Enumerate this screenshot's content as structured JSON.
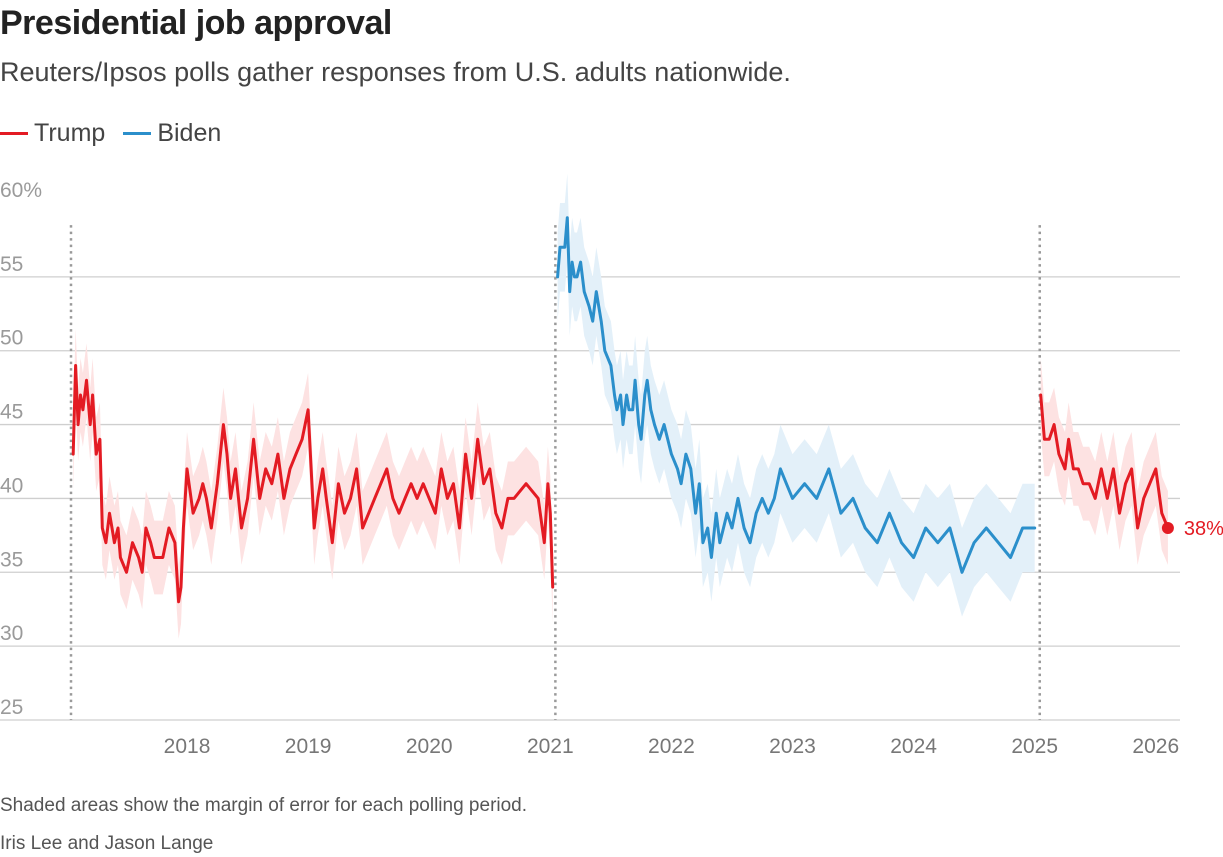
{
  "chart_data": {
    "type": "line",
    "title": "Presidential job approval",
    "subtitle": "Reuters/Ipsos polls gather responses from U.S. adults nationwide.",
    "note": "Shaded areas show the margin of error for each polling period.",
    "credit": "Iris Lee and Jason Lange",
    "ylim": [
      25,
      60
    ],
    "xlim": [
      2017.05,
      2026.2
    ],
    "y_ticks": [
      {
        "value": 60,
        "label": "60%"
      },
      {
        "value": 55,
        "label": "55"
      },
      {
        "value": 50,
        "label": "50"
      },
      {
        "value": 45,
        "label": "45"
      },
      {
        "value": 40,
        "label": "40"
      },
      {
        "value": 35,
        "label": "35"
      },
      {
        "value": 30,
        "label": "30"
      },
      {
        "value": 25,
        "label": "25"
      }
    ],
    "x_ticks": [
      {
        "value": 2018,
        "label": "2018"
      },
      {
        "value": 2019,
        "label": "2019"
      },
      {
        "value": 2020,
        "label": "2020"
      },
      {
        "value": 2021,
        "label": "2021"
      },
      {
        "value": 2022,
        "label": "2022"
      },
      {
        "value": 2023,
        "label": "2023"
      },
      {
        "value": 2024,
        "label": "2024"
      },
      {
        "value": 2025,
        "label": "2025"
      },
      {
        "value": 2026,
        "label": "2026"
      }
    ],
    "term_starts": [
      2017.05,
      2021.05,
      2025.05
    ],
    "end_label": "38%",
    "colors": {
      "trump": "#e31b23",
      "trump_band": "#fde2e2",
      "biden": "#2b8fcb",
      "biden_band": "#e3f0f9",
      "grid": "#cfcfcf",
      "axis_text": "#9a9a9a",
      "tick_text": "#777777"
    },
    "series": [
      {
        "name": "Trump",
        "term": "2017-2021",
        "x": [
          2017.06,
          2017.08,
          2017.1,
          2017.12,
          2017.14,
          2017.17,
          2017.2,
          2017.22,
          2017.25,
          2017.28,
          2017.3,
          2017.33,
          2017.36,
          2017.38,
          2017.4,
          2017.43,
          2017.45,
          2017.5,
          2017.55,
          2017.6,
          2017.63,
          2017.66,
          2017.7,
          2017.73,
          2017.76,
          2017.8,
          2017.85,
          2017.9,
          2017.93,
          2017.95,
          2017.97,
          2018.0,
          2018.05,
          2018.1,
          2018.13,
          2018.16,
          2018.2,
          2018.25,
          2018.3,
          2018.33,
          2018.36,
          2018.4,
          2018.45,
          2018.5,
          2018.55,
          2018.6,
          2018.65,
          2018.7,
          2018.75,
          2018.8,
          2018.85,
          2018.9,
          2018.95,
          2019.0,
          2019.05,
          2019.08,
          2019.12,
          2019.15,
          2019.2,
          2019.25,
          2019.3,
          2019.35,
          2019.4,
          2019.45,
          2019.5,
          2019.55,
          2019.6,
          2019.65,
          2019.7,
          2019.75,
          2019.8,
          2019.85,
          2019.9,
          2019.95,
          2020.0,
          2020.05,
          2020.1,
          2020.15,
          2020.2,
          2020.25,
          2020.3,
          2020.35,
          2020.4,
          2020.45,
          2020.5,
          2020.55,
          2020.6,
          2020.65,
          2020.7,
          2020.8,
          2020.9,
          2020.95,
          2020.98,
          2021.0,
          2021.02
        ],
        "values": [
          43,
          49,
          45,
          47,
          46,
          48,
          45,
          47,
          43,
          44,
          38,
          37,
          39,
          38,
          37,
          38,
          36,
          35,
          37,
          36,
          35,
          38,
          37,
          36,
          36,
          36,
          38,
          37,
          33,
          34,
          38,
          42,
          39,
          40,
          41,
          40,
          38,
          41,
          45,
          43,
          40,
          42,
          38,
          40,
          44,
          40,
          42,
          41,
          43,
          40,
          42,
          43,
          44,
          46,
          38,
          40,
          42,
          40,
          37,
          41,
          39,
          40,
          42,
          38,
          39,
          40,
          41,
          42,
          40,
          39,
          40,
          41,
          40,
          41,
          40,
          39,
          42,
          40,
          41,
          38,
          43,
          40,
          44,
          41,
          42,
          39,
          38,
          40,
          40,
          41,
          40,
          37,
          41,
          39,
          34
        ],
        "moe": 2.5
      },
      {
        "name": "Biden",
        "x": [
          2021.06,
          2021.08,
          2021.1,
          2021.12,
          2021.14,
          2021.16,
          2021.18,
          2021.2,
          2021.22,
          2021.25,
          2021.28,
          2021.32,
          2021.35,
          2021.38,
          2021.42,
          2021.45,
          2021.5,
          2021.53,
          2021.55,
          2021.58,
          2021.6,
          2021.63,
          2021.65,
          2021.68,
          2021.7,
          2021.73,
          2021.75,
          2021.78,
          2021.8,
          2021.83,
          2021.86,
          2021.9,
          2021.94,
          2022.0,
          2022.05,
          2022.08,
          2022.12,
          2022.16,
          2022.2,
          2022.23,
          2022.26,
          2022.3,
          2022.33,
          2022.37,
          2022.4,
          2022.43,
          2022.46,
          2022.5,
          2022.55,
          2022.6,
          2022.65,
          2022.7,
          2022.75,
          2022.8,
          2022.85,
          2022.9,
          2022.95,
          2023.0,
          2023.1,
          2023.2,
          2023.3,
          2023.4,
          2023.5,
          2023.6,
          2023.7,
          2023.8,
          2023.9,
          2024.0,
          2024.1,
          2024.2,
          2024.3,
          2024.4,
          2024.5,
          2024.6,
          2024.7,
          2024.8,
          2024.9,
          2025.0
        ],
        "values": [
          55,
          57,
          57,
          57,
          59,
          54,
          56,
          55,
          55,
          56,
          54,
          53,
          52,
          54,
          52,
          50,
          49,
          47,
          46,
          47,
          45,
          47,
          46,
          46,
          48,
          45,
          44,
          47,
          48,
          46,
          45,
          44,
          45,
          43,
          42,
          41,
          43,
          42,
          39,
          41,
          37,
          38,
          36,
          39,
          37,
          38,
          39,
          38,
          40,
          38,
          37,
          39,
          40,
          39,
          40,
          42,
          41,
          40,
          41,
          40,
          42,
          39,
          40,
          38,
          37,
          39,
          37,
          36,
          38,
          37,
          38,
          35,
          37,
          38,
          37,
          36,
          38,
          38
        ],
        "moe": 3.0
      },
      {
        "name": "Trump",
        "term": "2025-2026",
        "x": [
          2025.05,
          2025.08,
          2025.12,
          2025.16,
          2025.2,
          2025.25,
          2025.28,
          2025.32,
          2025.36,
          2025.4,
          2025.45,
          2025.5,
          2025.55,
          2025.6,
          2025.65,
          2025.7,
          2025.75,
          2025.8,
          2025.85,
          2025.9,
          2025.95,
          2026.0,
          2026.05,
          2026.1
        ],
        "values": [
          47,
          44,
          44,
          45,
          43,
          42,
          44,
          42,
          42,
          41,
          41,
          40,
          42,
          40,
          42,
          39,
          41,
          42,
          38,
          40,
          41,
          42,
          39,
          38
        ],
        "moe": 2.5
      }
    ]
  }
}
